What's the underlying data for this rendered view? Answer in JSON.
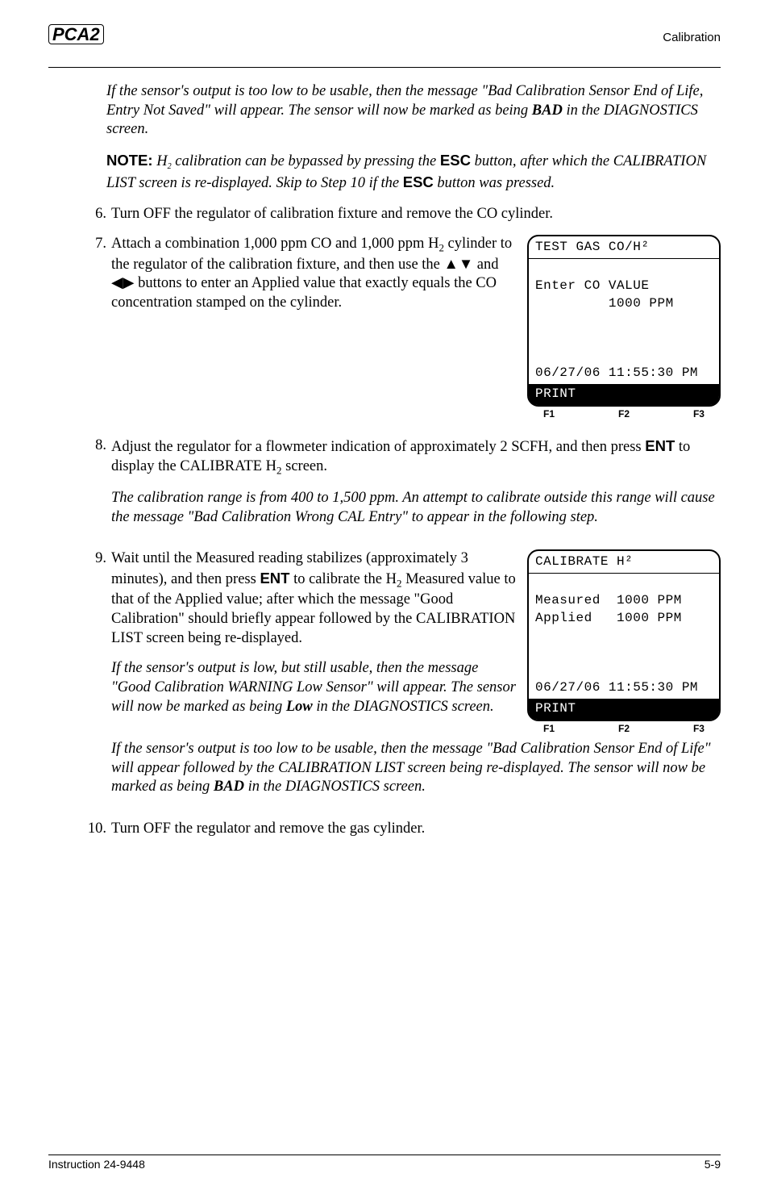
{
  "header": {
    "logo_text": "PCA2",
    "right_text": "Calibration"
  },
  "para_low_output_bad": "If the sensor's output is too low to be usable, then the message \"Bad Calibration Sensor End of Life, Entry Not Saved\" will appear. The sensor will now be marked as being ",
  "para_low_output_bad_bold": "BAD",
  "para_low_output_bad_tail": " in the DIAGNOSTICS screen.",
  "note_prefix": "NOTE:",
  "note_body1": " H",
  "note_body2": " calibration can be bypassed by pressing the ",
  "note_esc": "ESC",
  "note_body3": " button, after which the CALIBRATION LIST screen is re-displayed. Skip to Step 10 if the ",
  "note_esc2": "ESC",
  "note_body4": " button was pressed.",
  "step6_num": "6.",
  "step6": "Turn OFF the regulator of calibration fixture and remove the CO cylinder.",
  "step7_num": "7.",
  "step7a": "Attach a combination 1,000 ppm CO and 1,000 ppm H",
  "step7b": " cylinder to the regulator of the calibration fixture, and then use the ",
  "step7c": " and ",
  "step7d": " buttons to enter an Applied value that exactly equals the CO concentration stamped on the cylinder.",
  "step8_num": "8.",
  "step8a": "Adjust the regulator for a flowmeter indication of approximately 2 SCFH, and then press ",
  "step8_ent": "ENT",
  "step8b": " to display the CALIBRATE H",
  "step8c": " screen.",
  "step8_sub": "The calibration range is from 400 to 1,500 ppm.  An attempt to calibrate outside this range will cause the message \"Bad Calibration Wrong CAL Entry\" to appear in the following step.",
  "step9_num": "9.",
  "step9a": "Wait until the Measured reading stabilizes (approximately 3 minutes), and then press ",
  "step9_ent": "ENT",
  "step9b": " to calibrate the H",
  "step9c": " Measured value to that of the Applied value; after which the message \"Good Calibration\" should briefly appear followed by the CALIBRATION LIST screen being re-displayed.",
  "step9_sub1a": "If the sensor's output is low, but still usable, then the message \"Good Calibration WARNING Low Sensor\"  will appear. The sensor will now be marked as being ",
  "step9_sub1_bold": "Low",
  "step9_sub1b": " in the DIAGNOSTICS screen.",
  "step9_sub2a": "If the sensor's output is too low to be usable, then the message \"Bad Calibration Sensor End of Life\" will appear followed by the CALIBRATION LIST screen being re-displayed. The sensor will now be marked as being ",
  "step9_sub2_bold": "BAD",
  "step9_sub2b": " in the DIAGNOSTICS screen.",
  "step10_num": "10.",
  "step10": "Turn OFF the regulator and remove the gas cylinder.",
  "lcd1": {
    "title": "TEST GAS CO/H²",
    "line1": "Enter CO VALUE",
    "line2": "         1000 PPM",
    "line3": " ",
    "line4": " ",
    "line5": " ",
    "date": "06/27/06 11:55:30 PM",
    "foot": "PRINT"
  },
  "lcd2": {
    "title": "CALIBRATE H²",
    "line1": "Measured  1000 PPM",
    "line2": "Applied   1000 PPM",
    "line3": " ",
    "line4": " ",
    "line5": " ",
    "date": "06/27/06 11:55:30 PM",
    "foot": "PRINT"
  },
  "fkeys": {
    "f1": "F1",
    "f2": "F2",
    "f3": "F3"
  },
  "footer": {
    "left": "Instruction 24-9448",
    "right": "5-9"
  }
}
